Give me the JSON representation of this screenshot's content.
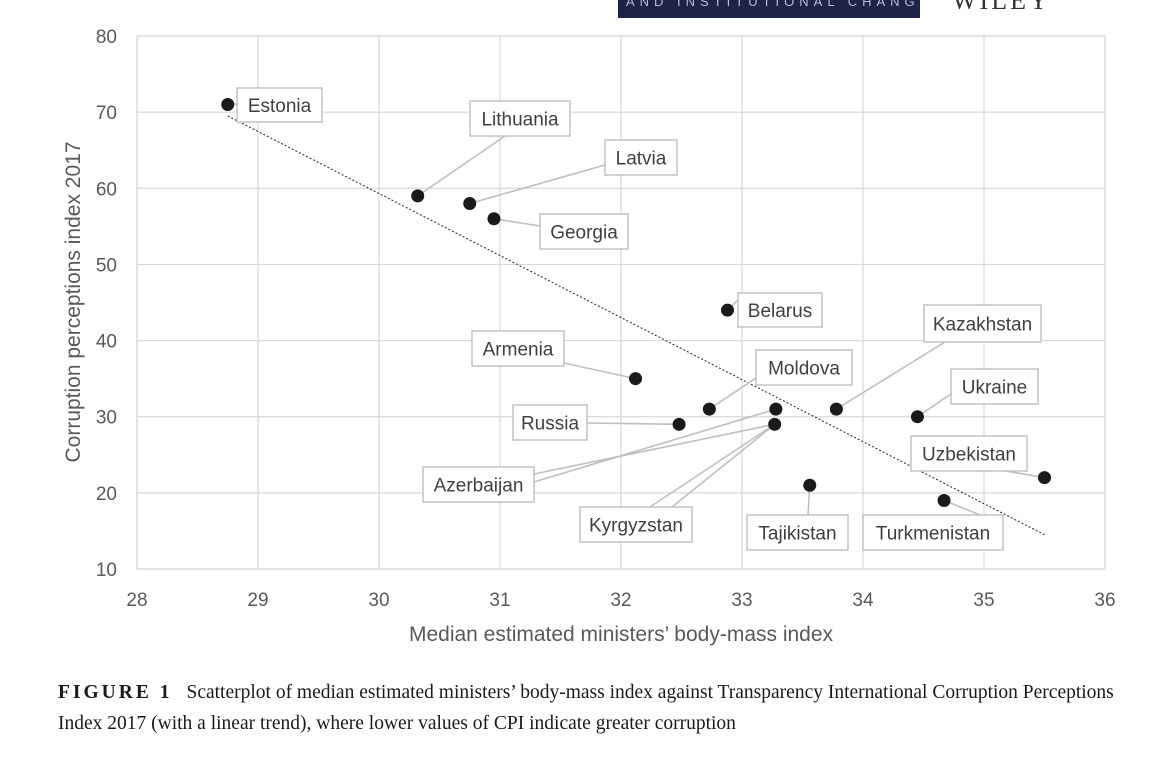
{
  "header": {
    "journal_fragment": "AND INSTITUTIONAL CHANGE",
    "publisher_fragment": "WILEY"
  },
  "chart_data": {
    "type": "scatter",
    "xlabel": "Median estimated ministers’ body-mass index",
    "ylabel": "Corruption perceptions index 2017",
    "xlim": [
      28,
      36
    ],
    "ylim": [
      10,
      80
    ],
    "xticks": [
      28,
      29,
      30,
      31,
      32,
      33,
      34,
      35,
      36
    ],
    "yticks": [
      10,
      20,
      30,
      40,
      50,
      60,
      70,
      80
    ],
    "grid": true,
    "trendline": {
      "type": "linear",
      "x": [
        28.75,
        35.5
      ],
      "y": [
        69.5,
        14.5
      ]
    },
    "points": [
      {
        "label": "Estonia",
        "x": 28.75,
        "y": 71
      },
      {
        "label": "Lithuania",
        "x": 30.32,
        "y": 59
      },
      {
        "label": "Latvia",
        "x": 30.75,
        "y": 58
      },
      {
        "label": "Georgia",
        "x": 30.95,
        "y": 56
      },
      {
        "label": "Belarus",
        "x": 32.88,
        "y": 44
      },
      {
        "label": "Armenia",
        "x": 32.12,
        "y": 35
      },
      {
        "label": "Moldova",
        "x": 32.73,
        "y": 31
      },
      {
        "label": "Kazakhstan",
        "x": 33.78,
        "y": 31
      },
      {
        "label": "Ukraine",
        "x": 34.45,
        "y": 30
      },
      {
        "label": "Russia",
        "x": 32.48,
        "y": 29
      },
      {
        "label": "Azerbaijan",
        "x": 33.28,
        "y": 31
      },
      {
        "label": "Kyrgyzstan",
        "x": 33.27,
        "y": 29
      },
      {
        "label": "Uzbekistan",
        "x": 35.5,
        "y": 22
      },
      {
        "label": "Tajikistan",
        "x": 33.56,
        "y": 21
      },
      {
        "label": "Turkmenistan",
        "x": 34.67,
        "y": 19
      }
    ]
  },
  "caption": {
    "figure_label": "FIGURE 1",
    "text": "Scatterplot of median estimated ministers’ body-mass index against Transparency International Corruption Perceptions Index 2017 (with a linear trend), where lower values of CPI indicate greater corruption"
  }
}
